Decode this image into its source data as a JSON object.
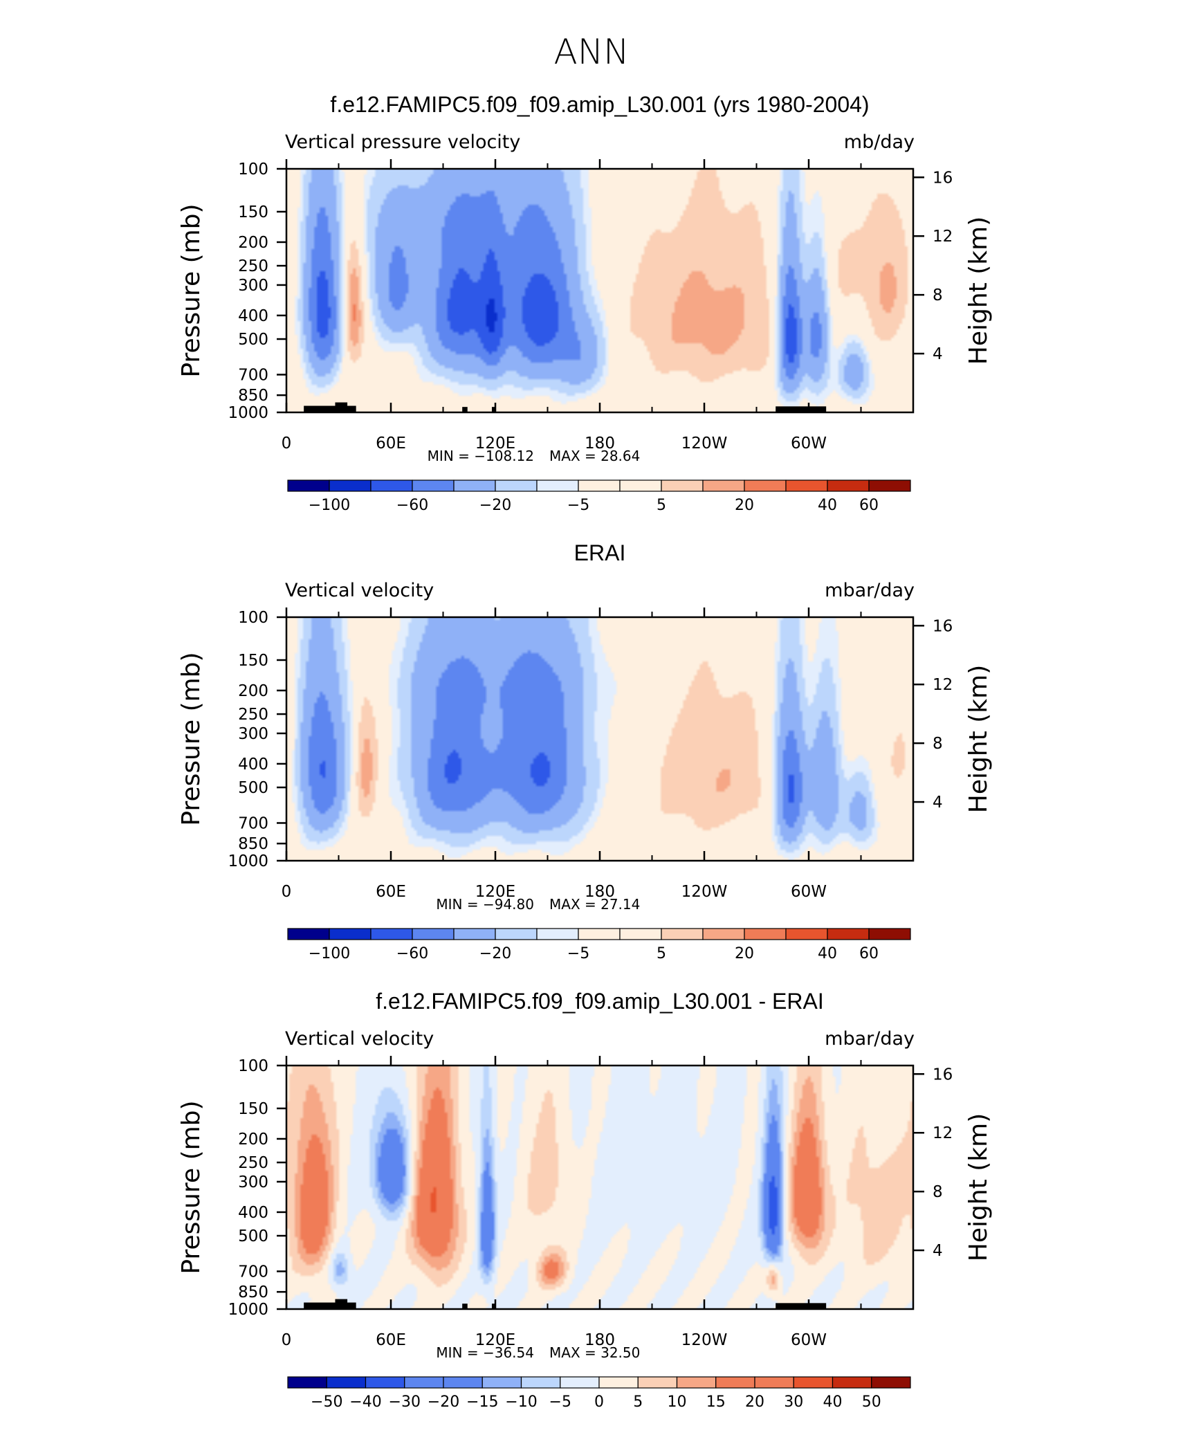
{
  "main_title": "ANN",
  "colors": {
    "levels13": [
      "#00008c",
      "#0a2ecc",
      "#2e58e8",
      "#5d86f0",
      "#8fb1f7",
      "#bcd6fc",
      "#e3eefd",
      "#fef0e0",
      "#fbd0b6",
      "#f6a786",
      "#f07c57",
      "#e8552e",
      "#c62c10",
      "#8e0e03"
    ],
    "levels14": [
      "#00008c",
      "#0a2ecc",
      "#2e58e8",
      "#5d86f0",
      "#8fb1f7",
      "#bcd6fc",
      "#e3eefd",
      "#fef0e0",
      "#fbd0b6",
      "#f6a786",
      "#f07c57",
      "#e8552e",
      "#c62c10",
      "#8e0e03"
    ],
    "terrain": "#000000"
  },
  "chart_data": [
    {
      "type": "heatmap",
      "title": "f.e12.FAMIPC5.f09_f09.amip_L30.001 (yrs 1980-2004)",
      "left_label": "Vertical pressure velocity",
      "right_label": "mb/day",
      "ylabel": "Pressure (mb)",
      "y2label": "Height (km)",
      "x_ticks": [
        "0",
        "60E",
        "120E",
        "180",
        "120W",
        "60W"
      ],
      "x_range": [
        0,
        360
      ],
      "y_ticks": [
        "100",
        "150",
        "200",
        "250",
        "300",
        "400",
        "500",
        "700",
        "850",
        "1000"
      ],
      "y_range_mb": [
        1000,
        100
      ],
      "y2_ticks": [
        "16",
        "12",
        "8",
        "4"
      ],
      "min_label": "MIN = −108.12",
      "max_label": "MAX =   28.64",
      "min": -108.12,
      "max": 28.64,
      "colorbar_labels": [
        "−100",
        "−60",
        "−20",
        "−5",
        "5",
        "20",
        "40",
        "60"
      ],
      "levels": [
        -120,
        -100,
        -80,
        -60,
        -40,
        -20,
        -10,
        -5,
        5,
        10,
        20,
        30,
        40,
        50,
        60,
        70
      ],
      "show_terrain": true,
      "features": [
        {
          "lon": 20,
          "p": 380,
          "wl": 7,
          "wp": 290,
          "a": -72
        },
        {
          "lon": 38,
          "p": 380,
          "wl": 4,
          "wp": 220,
          "a": 35
        },
        {
          "lon": 62,
          "p": 300,
          "wl": 9,
          "wp": 170,
          "a": -45
        },
        {
          "lon": 100,
          "p": 380,
          "wl": 14,
          "wp": 280,
          "a": -68
        },
        {
          "lon": 118,
          "p": 420,
          "wl": 5,
          "wp": 300,
          "a": -40
        },
        {
          "lon": 145,
          "p": 390,
          "wl": 15,
          "wp": 300,
          "a": -72
        },
        {
          "lon": 170,
          "p": 600,
          "wl": 10,
          "wp": 220,
          "a": -28
        },
        {
          "lon": 90,
          "p": 160,
          "wl": 40,
          "wp": 70,
          "a": -12
        },
        {
          "lon": 243,
          "p": 420,
          "wl": 33,
          "wp": 330,
          "a": 24
        },
        {
          "lon": 290,
          "p": 480,
          "wl": 5,
          "wp": 320,
          "a": -80
        },
        {
          "lon": 305,
          "p": 500,
          "wl": 5,
          "wp": 280,
          "a": -50
        },
        {
          "lon": 327,
          "p": 700,
          "wl": 6,
          "wp": 180,
          "a": -32
        },
        {
          "lon": 345,
          "p": 300,
          "wl": 10,
          "wp": 220,
          "a": 22
        },
        {
          "lon": 320,
          "p": 250,
          "wl": 8,
          "wp": 120,
          "a": 10
        }
      ]
    },
    {
      "type": "heatmap",
      "title": "ERAI",
      "left_label": "Vertical velocity",
      "right_label": "mbar/day",
      "ylabel": "Pressure (mb)",
      "y2label": "Height (km)",
      "x_ticks": [
        "0",
        "60E",
        "120E",
        "180",
        "120W",
        "60W"
      ],
      "x_range": [
        0,
        360
      ],
      "y_ticks": [
        "100",
        "150",
        "200",
        "250",
        "300",
        "400",
        "500",
        "700",
        "850",
        "1000"
      ],
      "y_range_mb": [
        1000,
        100
      ],
      "y2_ticks": [
        "16",
        "12",
        "8",
        "4"
      ],
      "min_label": "MIN = −94.80",
      "max_label": "MAX =   27.14",
      "min": -94.8,
      "max": 27.14,
      "colorbar_labels": [
        "−100",
        "−60",
        "−20",
        "−5",
        "5",
        "20",
        "40",
        "60"
      ],
      "levels": [
        -120,
        -100,
        -80,
        -60,
        -40,
        -20,
        -10,
        -5,
        5,
        10,
        20,
        30,
        40,
        50,
        60,
        70
      ],
      "show_terrain": false,
      "features": [
        {
          "lon": 20,
          "p": 420,
          "wl": 9,
          "wp": 320,
          "a": -62
        },
        {
          "lon": 45,
          "p": 420,
          "wl": 5,
          "wp": 280,
          "a": 25
        },
        {
          "lon": 95,
          "p": 430,
          "wl": 16,
          "wp": 330,
          "a": -60
        },
        {
          "lon": 145,
          "p": 420,
          "wl": 18,
          "wp": 330,
          "a": -62
        },
        {
          "lon": 120,
          "p": 180,
          "wl": 40,
          "wp": 80,
          "a": -15
        },
        {
          "lon": 245,
          "p": 450,
          "wl": 27,
          "wp": 330,
          "a": 20
        },
        {
          "lon": 290,
          "p": 500,
          "wl": 6,
          "wp": 330,
          "a": -68
        },
        {
          "lon": 310,
          "p": 500,
          "wl": 6,
          "wp": 290,
          "a": -42
        },
        {
          "lon": 330,
          "p": 650,
          "wl": 6,
          "wp": 200,
          "a": -28
        },
        {
          "lon": 355,
          "p": 400,
          "wl": 8,
          "wp": 200,
          "a": 12
        }
      ]
    },
    {
      "type": "heatmap",
      "title": "f.e12.FAMIPC5.f09_f09.amip_L30.001 - ERAI",
      "left_label": "Vertical velocity",
      "right_label": "mbar/day",
      "ylabel": "Pressure (mb)",
      "y2label": "Height (km)",
      "x_ticks": [
        "0",
        "60E",
        "120E",
        "180",
        "120W",
        "60W"
      ],
      "x_range": [
        0,
        360
      ],
      "y_ticks": [
        "100",
        "150",
        "200",
        "250",
        "300",
        "400",
        "500",
        "700",
        "850",
        "1000"
      ],
      "y_range_mb": [
        1000,
        100
      ],
      "y2_ticks": [
        "16",
        "12",
        "8",
        "4"
      ],
      "min_label": "MIN = −36.54",
      "max_label": "MAX =   32.50",
      "min": -36.54,
      "max": 32.5,
      "colorbar_labels": [
        "−50",
        "−40",
        "−30",
        "−20",
        "−15",
        "−10",
        "−5",
        "0",
        "5",
        "10",
        "15",
        "20",
        "30",
        "40",
        "50"
      ],
      "levels": [
        -60,
        -50,
        -40,
        -30,
        -20,
        -15,
        -10,
        -5,
        0,
        5,
        10,
        15,
        20,
        30,
        40,
        50,
        60
      ],
      "show_terrain": true,
      "features": [
        {
          "lon": 15,
          "p": 380,
          "wl": 8,
          "wp": 300,
          "a": 24
        },
        {
          "lon": 30,
          "p": 700,
          "wl": 4,
          "wp": 130,
          "a": -14
        },
        {
          "lon": 60,
          "p": 270,
          "wl": 7,
          "wp": 120,
          "a": -30
        },
        {
          "lon": 85,
          "p": 380,
          "wl": 9,
          "wp": 300,
          "a": 30
        },
        {
          "lon": 115,
          "p": 450,
          "wl": 3,
          "wp": 280,
          "a": -28
        },
        {
          "lon": 152,
          "p": 700,
          "wl": 6,
          "wp": 120,
          "a": 18
        },
        {
          "lon": 150,
          "p": 300,
          "wl": 10,
          "wp": 200,
          "a": 8
        },
        {
          "lon": 210,
          "p": 300,
          "wl": 30,
          "wp": 200,
          "a": -3
        },
        {
          "lon": 280,
          "p": 400,
          "wl": 4,
          "wp": 250,
          "a": -36
        },
        {
          "lon": 300,
          "p": 350,
          "wl": 7,
          "wp": 220,
          "a": 28
        },
        {
          "lon": 280,
          "p": 750,
          "wl": 3,
          "wp": 120,
          "a": 16
        },
        {
          "lon": 340,
          "p": 400,
          "wl": 14,
          "wp": 300,
          "a": 8
        }
      ]
    }
  ]
}
